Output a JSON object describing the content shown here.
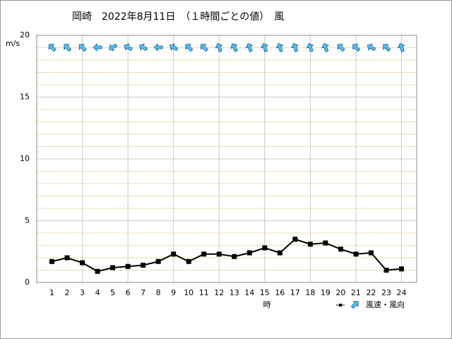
{
  "chart_data": {
    "type": "line",
    "title": "岡崎　2022年8月11日　（１時間ごとの値）　風",
    "y_label": "m/s",
    "x_label": "時",
    "categories": [
      "1",
      "2",
      "3",
      "4",
      "5",
      "6",
      "7",
      "8",
      "9",
      "10",
      "11",
      "12",
      "13",
      "14",
      "15",
      "16",
      "17",
      "18",
      "19",
      "20",
      "21",
      "22",
      "23",
      "24"
    ],
    "series": [
      {
        "name": "風速・風向",
        "color": "#000000",
        "arrow_color": "#4cc3ff",
        "values": [
          1.7,
          2.0,
          1.6,
          0.9,
          1.2,
          1.3,
          1.4,
          1.7,
          2.3,
          1.7,
          2.3,
          2.3,
          2.1,
          2.4,
          2.8,
          2.4,
          3.5,
          3.1,
          3.2,
          2.7,
          2.3,
          2.4,
          1.0,
          1.1
        ],
        "directions": [
          315,
          315,
          315,
          270,
          240,
          300,
          300,
          270,
          300,
          315,
          315,
          340,
          330,
          340,
          340,
          340,
          340,
          340,
          340,
          315,
          315,
          300,
          315,
          340
        ]
      }
    ],
    "ylim": [
      0,
      20
    ],
    "yticks": [
      0,
      5,
      10,
      15,
      20
    ],
    "grid": true,
    "x_grid_every": 3
  }
}
